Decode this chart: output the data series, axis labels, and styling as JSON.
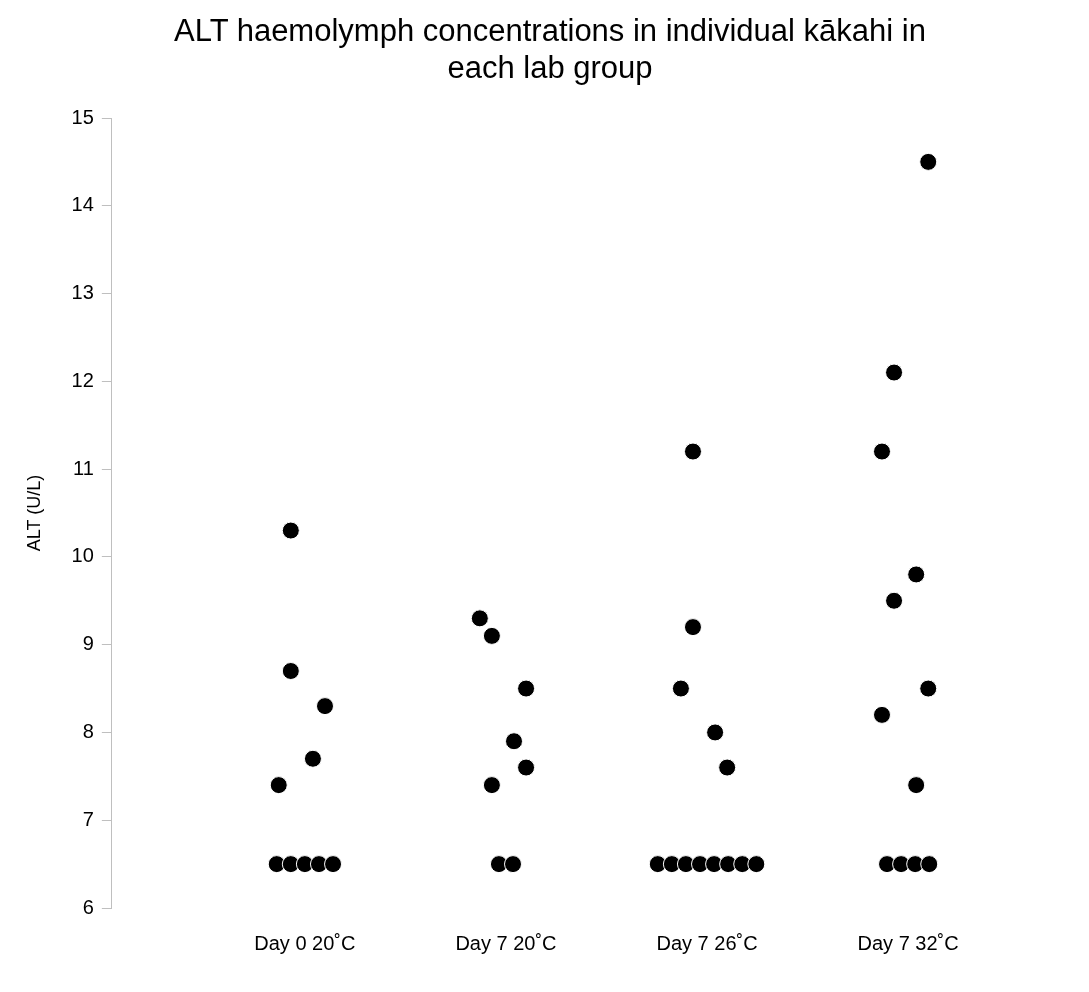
{
  "chart_data": {
    "type": "scatter",
    "title": "ALT haemolymph concentrations in individual kākahi in each lab group",
    "ylabel": "ALT (U/L)",
    "categories": [
      "Day 0 20˚C",
      "Day 7 20˚C",
      "Day 7 26˚C",
      "Day 7 32˚C"
    ],
    "ylim": [
      6,
      15
    ],
    "yticks": [
      6,
      7,
      8,
      9,
      10,
      11,
      12,
      13,
      14,
      15
    ],
    "grid": false,
    "marker": "circle",
    "series": [
      {
        "color": "#000000",
        "x": [
          "Day 0 20˚C",
          "Day 0 20˚C",
          "Day 0 20˚C",
          "Day 0 20˚C",
          "Day 0 20˚C",
          "Day 0 20˚C",
          "Day 0 20˚C",
          "Day 0 20˚C",
          "Day 0 20˚C",
          "Day 0 20˚C",
          "Day 7 20˚C",
          "Day 7 20˚C",
          "Day 7 20˚C",
          "Day 7 20˚C",
          "Day 7 20˚C",
          "Day 7 20˚C",
          "Day 7 20˚C",
          "Day 7 20˚C",
          "Day 7 26˚C",
          "Day 7 26˚C",
          "Day 7 26˚C",
          "Day 7 26˚C",
          "Day 7 26˚C",
          "Day 7 26˚C",
          "Day 7 26˚C",
          "Day 7 26˚C",
          "Day 7 26˚C",
          "Day 7 26˚C",
          "Day 7 26˚C",
          "Day 7 26˚C",
          "Day 7 26˚C",
          "Day 7 32˚C",
          "Day 7 32˚C",
          "Day 7 32˚C",
          "Day 7 32˚C",
          "Day 7 32˚C",
          "Day 7 32˚C",
          "Day 7 32˚C",
          "Day 7 32˚C",
          "Day 7 32˚C",
          "Day 7 32˚C",
          "Day 7 32˚C",
          "Day 7 32˚C"
        ],
        "values": [
          8.7,
          8.3,
          7.4,
          7.7,
          10.3,
          6.5,
          6.5,
          6.5,
          6.5,
          6.5,
          9.1,
          8.5,
          9.3,
          7.9,
          7.4,
          7.6,
          6.5,
          6.5,
          9.2,
          7.6,
          8.5,
          8.0,
          11.2,
          6.5,
          6.5,
          6.5,
          6.5,
          6.5,
          6.5,
          6.5,
          6.5,
          12.1,
          14.5,
          11.2,
          9.8,
          9.5,
          8.5,
          8.2,
          7.4,
          6.5,
          6.5,
          6.5,
          6.5
        ]
      }
    ]
  }
}
